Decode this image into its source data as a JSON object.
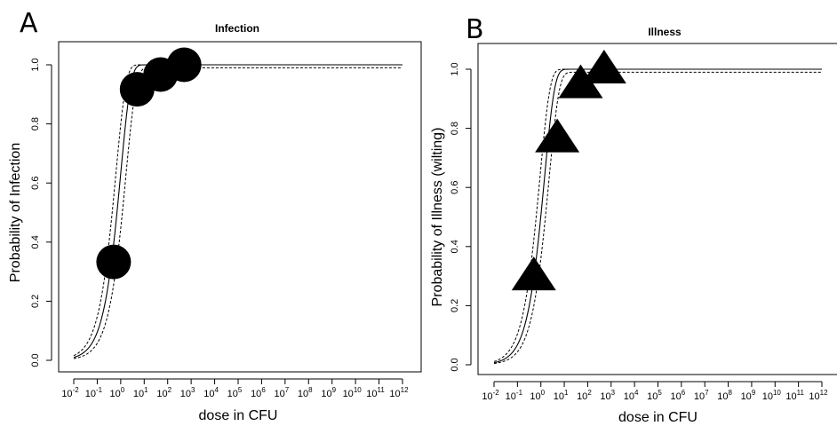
{
  "chart_data": [
    {
      "type": "scatter",
      "panel_letter": "A",
      "title": "Infection",
      "xlabel": "dose in CFU",
      "ylabel": "Probability of Infection",
      "x_scale": "log10",
      "xlim": [
        0.01,
        1000000000000.0
      ],
      "ylim": [
        0,
        1
      ],
      "x_ticks": [
        {
          "base": "10",
          "exp": "-2"
        },
        {
          "base": "10",
          "exp": "-1"
        },
        {
          "base": "10",
          "exp": "0"
        },
        {
          "base": "10",
          "exp": "1"
        },
        {
          "base": "10",
          "exp": "2"
        },
        {
          "base": "10",
          "exp": "3"
        },
        {
          "base": "10",
          "exp": "4"
        },
        {
          "base": "10",
          "exp": "5"
        },
        {
          "base": "10",
          "exp": "6"
        },
        {
          "base": "10",
          "exp": "7"
        },
        {
          "base": "10",
          "exp": "8"
        },
        {
          "base": "10",
          "exp": "9"
        },
        {
          "base": "10",
          "exp": "10"
        },
        {
          "base": "10",
          "exp": "11"
        },
        {
          "base": "10",
          "exp": "12"
        }
      ],
      "y_ticks": [
        "0.0",
        "0.2",
        "0.4",
        "0.6",
        "0.8",
        "1.0"
      ],
      "marker": "circle",
      "points": [
        {
          "x": 0.5,
          "y": 0.333
        },
        {
          "x": 5,
          "y": 0.917
        },
        {
          "x": 50,
          "y": 0.967
        },
        {
          "x": 500,
          "y": 1.0
        }
      ],
      "fit": {
        "model": "exponential",
        "k": 1.0,
        "k_low": 0.6,
        "k_high": 1.6,
        "asymptote_low": 0.99
      }
    },
    {
      "type": "scatter",
      "panel_letter": "B",
      "title": "Illness",
      "xlabel": "dose in CFU",
      "ylabel": "Probability of Illness (wilting)",
      "x_scale": "log10",
      "xlim": [
        0.01,
        1000000000000.0
      ],
      "ylim": [
        0,
        1
      ],
      "x_ticks": [
        {
          "base": "10",
          "exp": "-2"
        },
        {
          "base": "10",
          "exp": "-1"
        },
        {
          "base": "10",
          "exp": "0"
        },
        {
          "base": "10",
          "exp": "1"
        },
        {
          "base": "10",
          "exp": "2"
        },
        {
          "base": "10",
          "exp": "3"
        },
        {
          "base": "10",
          "exp": "4"
        },
        {
          "base": "10",
          "exp": "5"
        },
        {
          "base": "10",
          "exp": "6"
        },
        {
          "base": "10",
          "exp": "7"
        },
        {
          "base": "10",
          "exp": "8"
        },
        {
          "base": "10",
          "exp": "9"
        },
        {
          "base": "10",
          "exp": "10"
        },
        {
          "base": "10",
          "exp": "11"
        },
        {
          "base": "10",
          "exp": "12"
        }
      ],
      "y_ticks": [
        "0.0",
        "0.2",
        "0.4",
        "0.6",
        "0.8",
        "1.0"
      ],
      "marker": "triangle",
      "points": [
        {
          "x": 0.5,
          "y": 0.3
        },
        {
          "x": 5,
          "y": 0.767
        },
        {
          "x": 50,
          "y": 0.95
        },
        {
          "x": 500,
          "y": 1.0
        }
      ],
      "fit": {
        "model": "exponential",
        "k": 0.7,
        "k_low": 0.45,
        "k_high": 1.1,
        "asymptote_low": 0.99
      }
    }
  ]
}
